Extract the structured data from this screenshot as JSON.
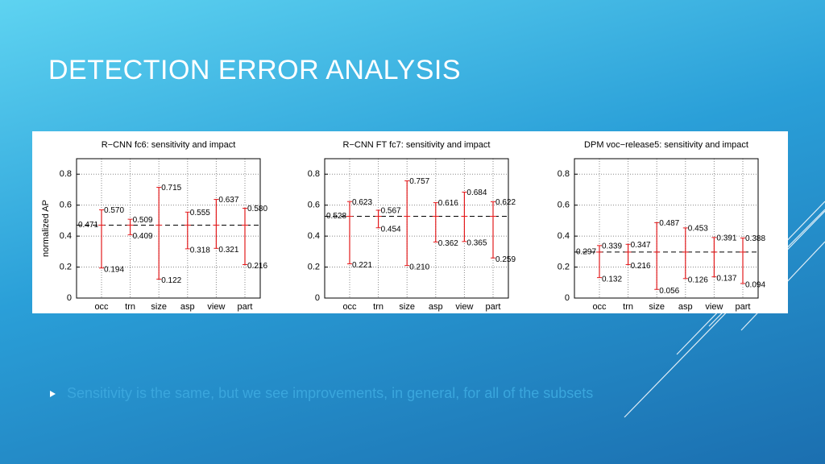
{
  "slide": {
    "title": "Detection Error Analysis",
    "bullets": [
      "Sensitivity is the same, but we see improvements, in general, for all of the subsets"
    ]
  },
  "chart_data": [
    {
      "type": "sensitivity",
      "title": "R−CNN fc6: sensitivity and impact",
      "ylabel": "normalized AP",
      "categories": [
        "occ",
        "trn",
        "size",
        "asp",
        "view",
        "part"
      ],
      "series": [
        {
          "values": [
            0.57,
            0.509,
            0.715,
            0.555,
            0.637,
            0.58
          ],
          "value_labels": [
            "0.570",
            "0.509",
            "0.715",
            "0.555",
            "0.637",
            "0.580"
          ],
          "color": "#e31a1c"
        },
        {
          "values": [
            0.194,
            0.409,
            0.122,
            0.318,
            0.321,
            0.216
          ],
          "value_labels": [
            "0.194",
            "0.409",
            "0.122",
            "0.318",
            "0.321",
            "0.216"
          ],
          "color": "#e31a1c"
        }
      ],
      "reference_line": {
        "value": 0.471,
        "style": "dashed"
      },
      "ylim": [
        0,
        0.9
      ],
      "yticks": [
        0,
        0.2,
        0.4,
        0.6,
        0.8
      ],
      "grid": true
    },
    {
      "type": "sensitivity",
      "title": "R−CNN FT fc7: sensitivity and impact",
      "categories": [
        "occ",
        "trn",
        "size",
        "asp",
        "view",
        "part"
      ],
      "series": [
        {
          "values": [
            0.623,
            0.567,
            0.757,
            0.616,
            0.684,
            0.622
          ],
          "value_labels": [
            "0.623",
            "0.567",
            "0.757",
            "0.616",
            "0.684",
            "0.622"
          ],
          "color": "#e31a1c"
        },
        {
          "values": [
            0.221,
            0.454,
            0.21,
            0.362,
            0.365,
            0.259
          ],
          "value_labels": [
            "0.221",
            "0.454",
            "0.210",
            "0.362",
            "0.365",
            "0.259"
          ],
          "color": "#e31a1c"
        }
      ],
      "reference_line": {
        "value": 0.528,
        "style": "dashed"
      },
      "ylim": [
        0,
        0.9
      ],
      "yticks": [
        0,
        0.2,
        0.4,
        0.6,
        0.8
      ],
      "grid": true
    },
    {
      "type": "sensitivity",
      "title": "DPM voc−release5: sensitivity and impact",
      "categories": [
        "occ",
        "trn",
        "size",
        "asp",
        "view",
        "part"
      ],
      "series": [
        {
          "values": [
            0.339,
            0.347,
            0.487,
            0.453,
            0.391,
            0.388
          ],
          "value_labels": [
            "0.339",
            "0.347",
            "0.487",
            "0.453",
            "0.391",
            "0.388"
          ],
          "color": "#e31a1c"
        },
        {
          "values": [
            0.132,
            0.216,
            0.056,
            0.126,
            0.137,
            0.094
          ],
          "value_labels": [
            "0.132",
            "0.216",
            "0.056",
            "0.126",
            "0.137",
            "0.094"
          ],
          "color": "#e31a1c"
        }
      ],
      "reference_line": {
        "value": 0.297,
        "style": "dashed"
      },
      "ylim": [
        0,
        0.9
      ],
      "yticks": [
        0,
        0.2,
        0.4,
        0.6,
        0.8
      ],
      "grid": true
    }
  ]
}
